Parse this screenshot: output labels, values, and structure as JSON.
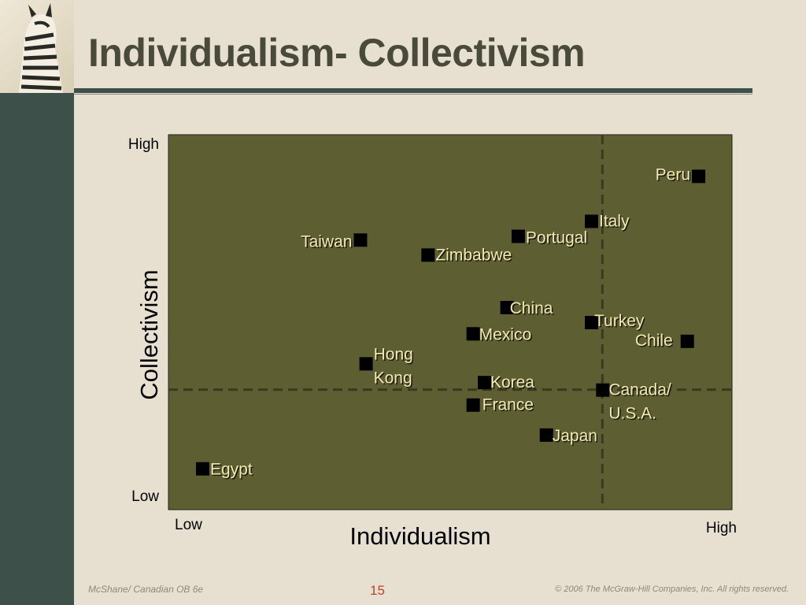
{
  "slide": {
    "title": "Individualism- Collectivism",
    "footer_left": "McShane/ Canadian OB 6e",
    "page_number": "15",
    "footer_right": "© 2006  The McGraw-Hill Companies, Inc.  All rights reserved."
  },
  "colors": {
    "plot_background": "#5e5e33",
    "marker": "#000000",
    "point_label": "#f2e9b0",
    "divider": "#3a3a22",
    "sidebar": "#3d5049",
    "background": "#e7e0d0"
  },
  "chart_data": {
    "type": "scatter",
    "xlabel": "Individualism",
    "ylabel": "Collectivism",
    "x_tick_labels": [
      "Low",
      "High"
    ],
    "y_tick_labels": [
      "Low",
      "High"
    ],
    "xlim": [
      0,
      100
    ],
    "ylim": [
      0,
      100
    ],
    "grid": false,
    "dividers": {
      "x": 77,
      "y": 32
    },
    "points": [
      {
        "label": "Peru",
        "x": 94,
        "y": 89
      },
      {
        "label": "Italy",
        "x": 75,
        "y": 77
      },
      {
        "label": "Portugal",
        "x": 62,
        "y": 73
      },
      {
        "label": "Taiwan",
        "x": 34,
        "y": 72
      },
      {
        "label": "Zimbabwe",
        "x": 46,
        "y": 68
      },
      {
        "label": "China",
        "x": 60,
        "y": 54
      },
      {
        "label": "Turkey",
        "x": 75,
        "y": 50
      },
      {
        "label": "Mexico",
        "x": 54,
        "y": 47
      },
      {
        "label": "Chile",
        "x": 92,
        "y": 45
      },
      {
        "label": "Hong Kong",
        "x": 35,
        "y": 39
      },
      {
        "label": "Korea",
        "x": 56,
        "y": 34
      },
      {
        "label": "Canada/ U.S.A.",
        "x": 77,
        "y": 32
      },
      {
        "label": "France",
        "x": 54,
        "y": 28
      },
      {
        "label": "Japan",
        "x": 67,
        "y": 20
      },
      {
        "label": "Egypt",
        "x": 6,
        "y": 11
      }
    ]
  }
}
